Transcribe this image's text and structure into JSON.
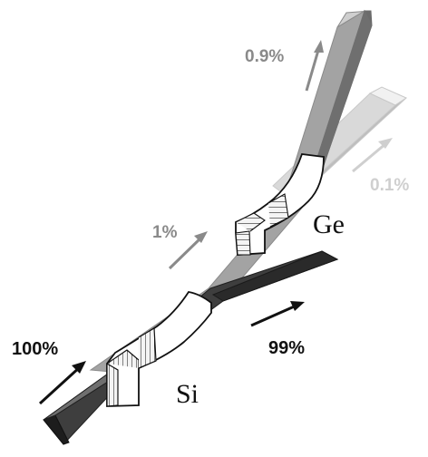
{
  "labels": {
    "input_percent": "100%",
    "transmitted_percent": "99%",
    "coupled_percent": "1%",
    "upper_transmitted_percent": "0.9%",
    "upper_dropped_percent": "0.1%",
    "silicon_label": "Si",
    "germanium_label": "Ge"
  },
  "colors": {
    "dark_waveguide": "#2b2b2b",
    "mid_waveguide": "#8f8f8f",
    "light_waveguide": "#d5d5d5",
    "coupler": "#ffffff",
    "arrow_dark": "#111111",
    "arrow_mid": "#8a8a8a",
    "arrow_light": "#c8c8c8"
  }
}
